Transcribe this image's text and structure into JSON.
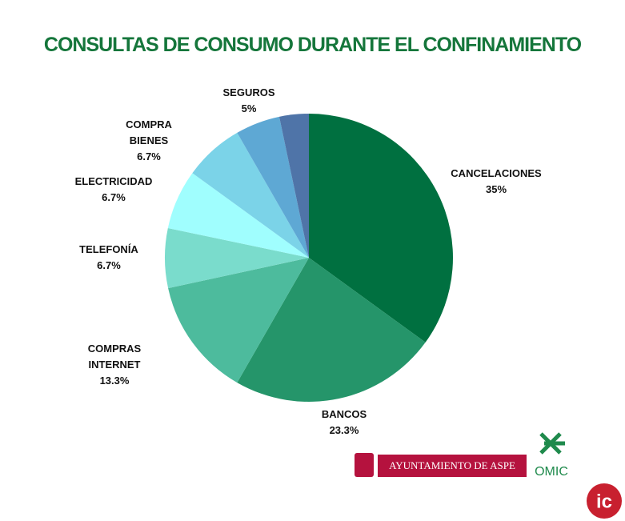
{
  "chart_data": {
    "type": "pie",
    "title": "CONSULTAS DE CONSUMO DURANTE EL CONFINAMIENTO",
    "categories": [
      "CANCELACIONES",
      "BANCOS",
      "COMPRAS INTERNET",
      "TELEFONÍA",
      "ELECTRICIDAD",
      "COMPRA BIENES",
      "SEGUROS",
      null
    ],
    "values": [
      35,
      23.3,
      13.3,
      6.7,
      6.7,
      6.7,
      5,
      3.3
    ],
    "value_labels": [
      "35%",
      "23.3%",
      "13.3%",
      "6.7%",
      "6.7%",
      "6.7%",
      "5%",
      null
    ],
    "colors": [
      "#007040",
      "#25956a",
      "#4dbb9d",
      "#7adccc",
      "#a0fefe",
      "#7bd3e8",
      "#5ea8d4",
      "#4f74a8"
    ]
  },
  "footer": {
    "council": "AYUNTAMIENTO DE ASPE",
    "omic": "OMIC"
  }
}
